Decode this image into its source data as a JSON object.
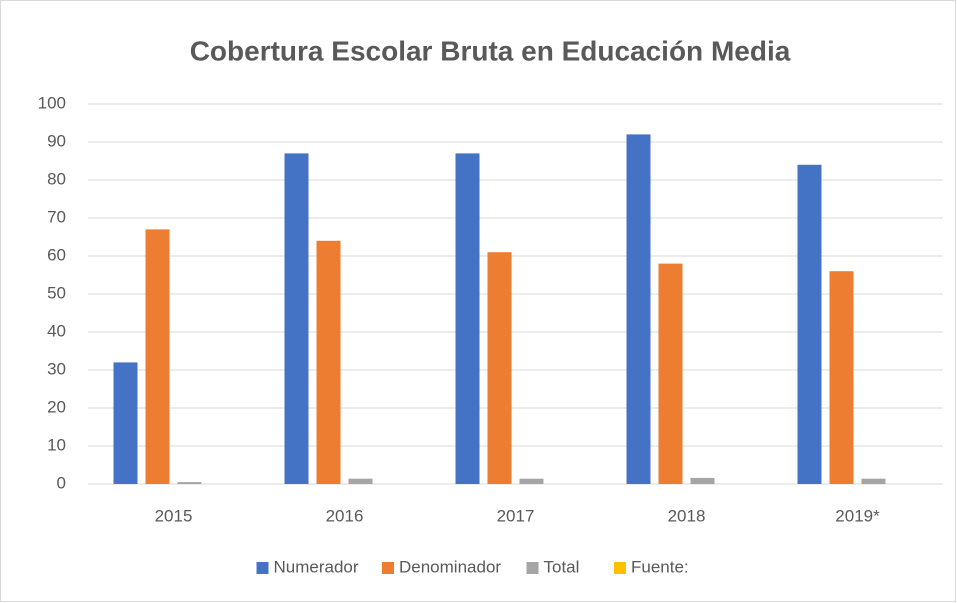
{
  "chart_data": {
    "type": "bar",
    "title": "Cobertura Escolar Bruta en Educación Media",
    "categories": [
      "2015",
      "2016",
      "2017",
      "2018",
      "2019*"
    ],
    "series": [
      {
        "name": "Numerador",
        "color": "#4472c4",
        "values": [
          32,
          87,
          87,
          92,
          84
        ]
      },
      {
        "name": "Denominador",
        "color": "#ed7d31",
        "values": [
          67,
          64,
          61,
          58,
          56
        ]
      },
      {
        "name": "Total",
        "color": "#a5a5a5",
        "values": [
          0.5,
          1.4,
          1.4,
          1.6,
          1.4
        ]
      },
      {
        "name": "Fuente:",
        "color": "#ffc000",
        "values": [
          null,
          null,
          null,
          null,
          null
        ]
      }
    ],
    "ylim": [
      0,
      100
    ],
    "yticks": [
      0,
      10,
      20,
      30,
      40,
      50,
      60,
      70,
      80,
      90,
      100
    ],
    "grid": true,
    "legend": "bottom"
  }
}
